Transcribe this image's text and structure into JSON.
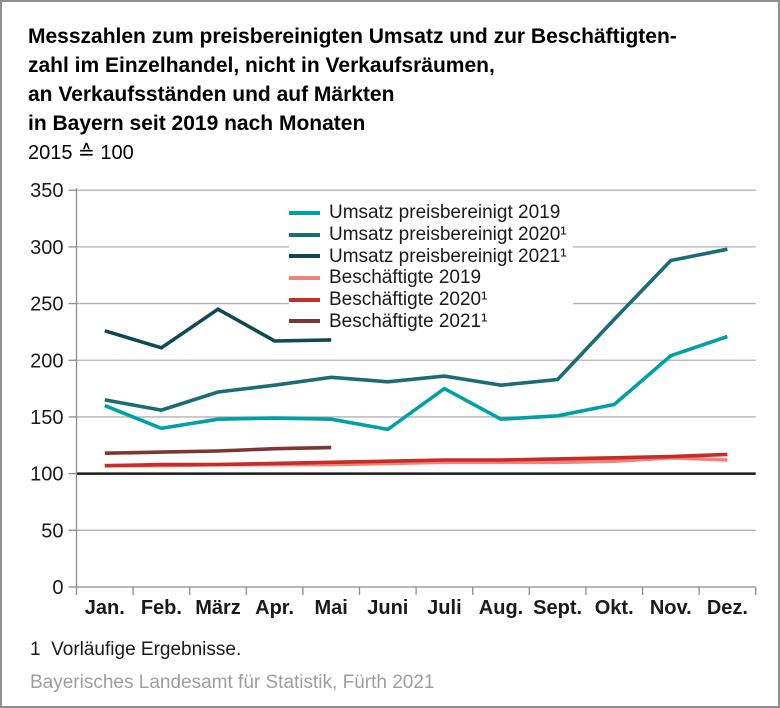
{
  "page": {
    "title_lines": [
      "Messzahlen zum preisbereinigten Umsatz und zur Beschäftigten-",
      "zahl im Einzelhandel, nicht in Verkaufsräumen,",
      "an Verkaufsständen und auf Märkten",
      "in Bayern seit 2019 nach Monaten"
    ],
    "subtitle": "2015 ≙ 100",
    "footnote": "1  Vorläufige Ergebnisse.",
    "source": "Bayerisches Landesamt für Statistik, Fürth 2021"
  },
  "colors": {
    "background": "#ffffff",
    "frame": "#8f8f8f",
    "grid": "#b2b2b2",
    "axis": "#8c8c8c",
    "reference_line": "#1a1a1a",
    "tick_label": "#1a1a1a",
    "source_text": "#9e9e9e"
  },
  "chart_data": {
    "type": "line",
    "title": "Messzahlen zum preisbereinigten Umsatz und zur Beschäftigtenzahl im Einzelhandel, nicht in Verkaufsräumen, an Verkaufsständen und auf Märkten in Bayern seit 2019 nach Monaten",
    "subtitle": "2015 ≙ 100",
    "categories": [
      "Jan.",
      "Feb.",
      "März",
      "Apr.",
      "Mai",
      "Juni",
      "Juli",
      "Aug.",
      "Sept.",
      "Okt.",
      "Nov.",
      "Dez."
    ],
    "ylim": [
      0,
      350
    ],
    "ytick_step": 50,
    "reference_line": 100,
    "grid": true,
    "legend_position": "inside-top-center",
    "series": [
      {
        "name": "Umsatz preisbereinigt 2019",
        "color": "#00A1A6",
        "values": [
          160,
          140,
          148,
          149,
          148,
          139,
          175,
          148,
          151,
          161,
          204,
          221
        ]
      },
      {
        "name": "Umsatz preisbereinigt 2020¹",
        "color": "#1C6C76",
        "values": [
          165,
          156,
          172,
          178,
          185,
          181,
          186,
          178,
          183,
          236,
          288,
          298
        ]
      },
      {
        "name": "Umsatz preisbereinigt 2021¹",
        "color": "#10494F",
        "values": [
          226,
          211,
          245,
          217,
          218,
          null,
          null,
          null,
          null,
          null,
          null,
          null
        ]
      },
      {
        "name": "Beschäftigte 2019",
        "color": "#F0837D",
        "values": [
          107,
          107,
          108,
          108,
          108,
          109,
          110,
          110,
          110,
          111,
          114,
          112
        ]
      },
      {
        "name": "Beschäftigte 2020¹",
        "color": "#C92B27",
        "values": [
          107,
          108,
          108,
          109,
          110,
          111,
          112,
          112,
          113,
          114,
          115,
          117
        ]
      },
      {
        "name": "Beschäftigte 2021¹",
        "color": "#7C3734",
        "values": [
          118,
          119,
          120,
          122,
          123,
          null,
          null,
          null,
          null,
          null,
          null,
          null
        ]
      }
    ]
  }
}
